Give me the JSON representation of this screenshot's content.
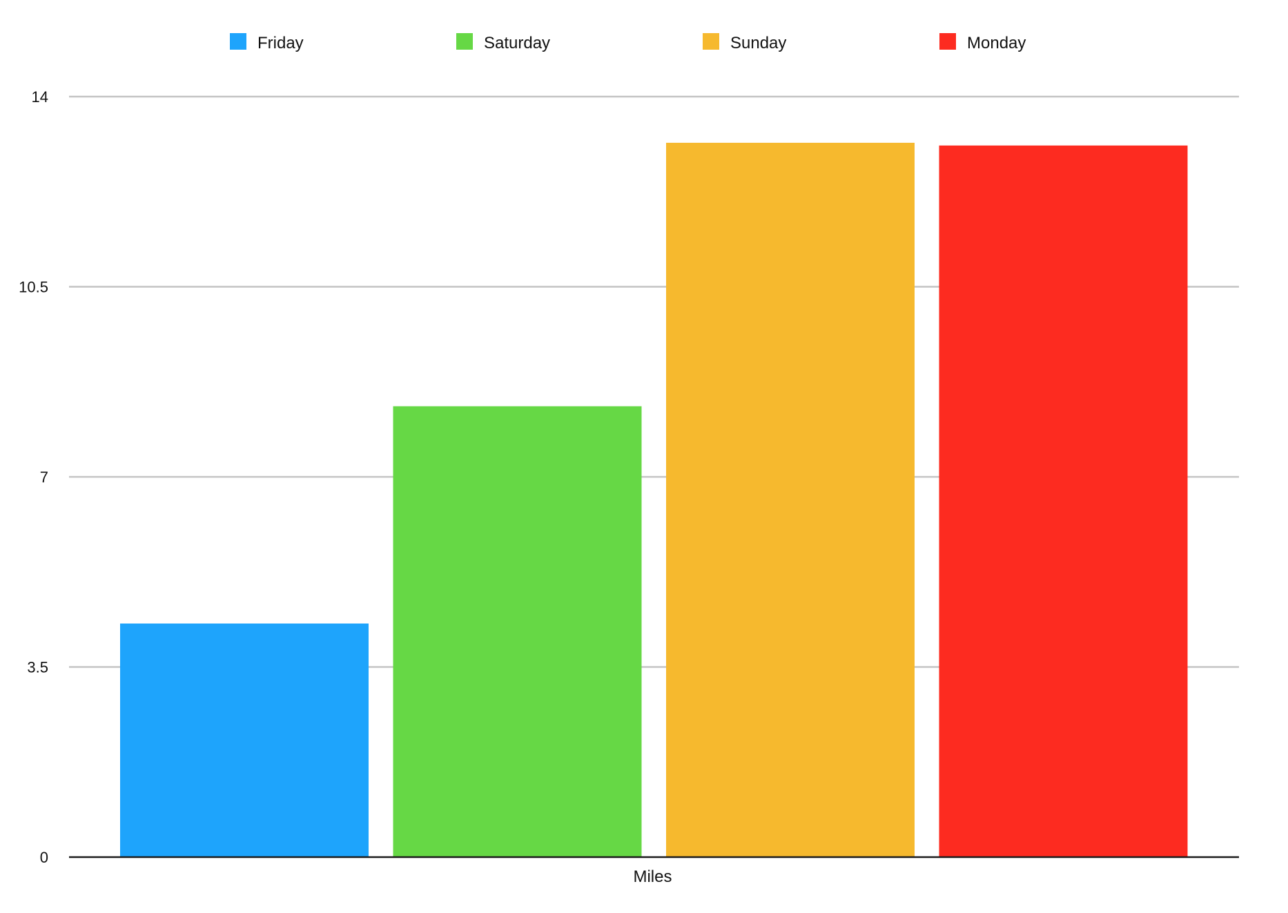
{
  "chart_data": {
    "type": "bar",
    "categories": [
      "Miles"
    ],
    "series": [
      {
        "name": "Friday",
        "values": [
          4.3
        ],
        "color": "#1ea4fc"
      },
      {
        "name": "Saturday",
        "values": [
          8.3
        ],
        "color": "#66d845"
      },
      {
        "name": "Sunday",
        "values": [
          13.15
        ],
        "color": "#f6b92e"
      },
      {
        "name": "Monday",
        "values": [
          13.1
        ],
        "color": "#fd2b20"
      }
    ],
    "y_ticks": [
      0,
      3.5,
      7,
      10.5,
      14
    ],
    "y_tick_labels": [
      "0",
      "3.5",
      "7",
      "10.5",
      "14"
    ],
    "ylim": [
      0,
      14
    ],
    "grid": true,
    "legend_position": "top",
    "title": "",
    "xlabel": "",
    "ylabel": ""
  }
}
